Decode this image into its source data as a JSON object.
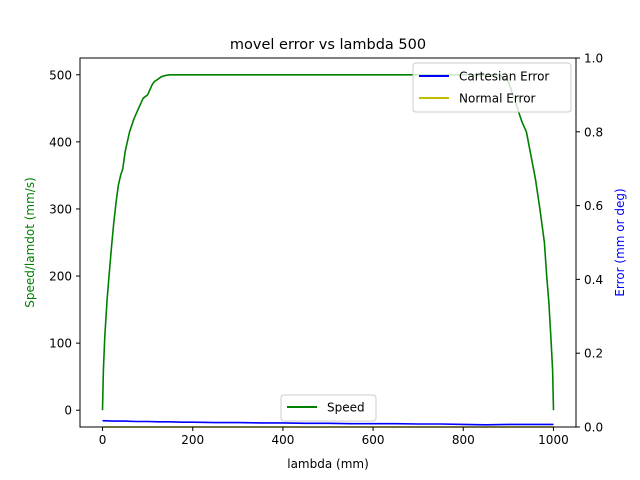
{
  "chart_data": {
    "type": "line",
    "title": "movel error vs lambda 500",
    "xlabel": "lambda (mm)",
    "ylabel_left": "Speed/lamdot (mm/s)",
    "ylabel_right": "Error (mm or deg)",
    "xlim": [
      -50,
      1050
    ],
    "ylim_left": [
      -25,
      525
    ],
    "ylim_right": [
      0,
      1.0
    ],
    "xticks": [
      0,
      200,
      400,
      600,
      800,
      1000
    ],
    "yticks_left": [
      0,
      100,
      200,
      300,
      400,
      500
    ],
    "yticks_right": [
      0.0,
      0.2,
      0.4,
      0.6,
      0.8,
      1.0
    ],
    "grid": false,
    "colors": {
      "speed": "#008000",
      "cartesian": "#0000ff",
      "normal": "#bfbf00",
      "left_axis_label": "#008000",
      "right_axis_label": "#0000ff"
    },
    "legend_upper": {
      "placement": "top-right",
      "entries": [
        "Cartesian Error",
        "Normal Error"
      ]
    },
    "legend_lower": {
      "placement": "bottom-center",
      "entries": [
        "Speed"
      ]
    },
    "series": [
      {
        "name": "Speed",
        "axis": "left",
        "x": [
          0,
          2,
          5,
          10,
          15,
          20,
          25,
          30,
          35,
          40,
          45,
          50,
          55,
          60,
          70,
          80,
          90,
          100,
          110,
          115,
          120,
          130,
          140,
          150,
          200,
          300,
          400,
          500,
          600,
          700,
          800,
          850,
          880,
          900,
          910,
          920,
          930,
          940,
          950,
          960,
          970,
          980,
          985,
          990,
          995,
          998,
          1000
        ],
        "y": [
          0,
          60,
          110,
          165,
          205,
          245,
          280,
          310,
          335,
          350,
          360,
          385,
          400,
          415,
          435,
          450,
          465,
          470,
          485,
          490,
          492,
          497,
          499,
          500,
          500,
          500,
          500,
          500,
          500,
          500,
          500,
          500,
          500,
          490,
          470,
          450,
          430,
          415,
          380,
          345,
          300,
          250,
          200,
          160,
          100,
          60,
          0
        ]
      },
      {
        "name": "Cartesian Error",
        "axis": "right",
        "x": [
          0,
          25,
          50,
          75,
          100,
          125,
          150,
          175,
          200,
          250,
          300,
          350,
          400,
          450,
          500,
          550,
          600,
          650,
          700,
          750,
          800,
          850,
          900,
          950,
          1000
        ],
        "y": [
          0.017,
          0.016,
          0.016,
          0.015,
          0.015,
          0.014,
          0.014,
          0.013,
          0.013,
          0.012,
          0.012,
          0.011,
          0.011,
          0.01,
          0.01,
          0.009,
          0.009,
          0.009,
          0.008,
          0.008,
          0.007,
          0.006,
          0.007,
          0.007,
          0.007
        ]
      },
      {
        "name": "Normal Error",
        "axis": "right",
        "x": [
          0,
          1000
        ],
        "y": [
          0,
          0
        ]
      }
    ]
  }
}
